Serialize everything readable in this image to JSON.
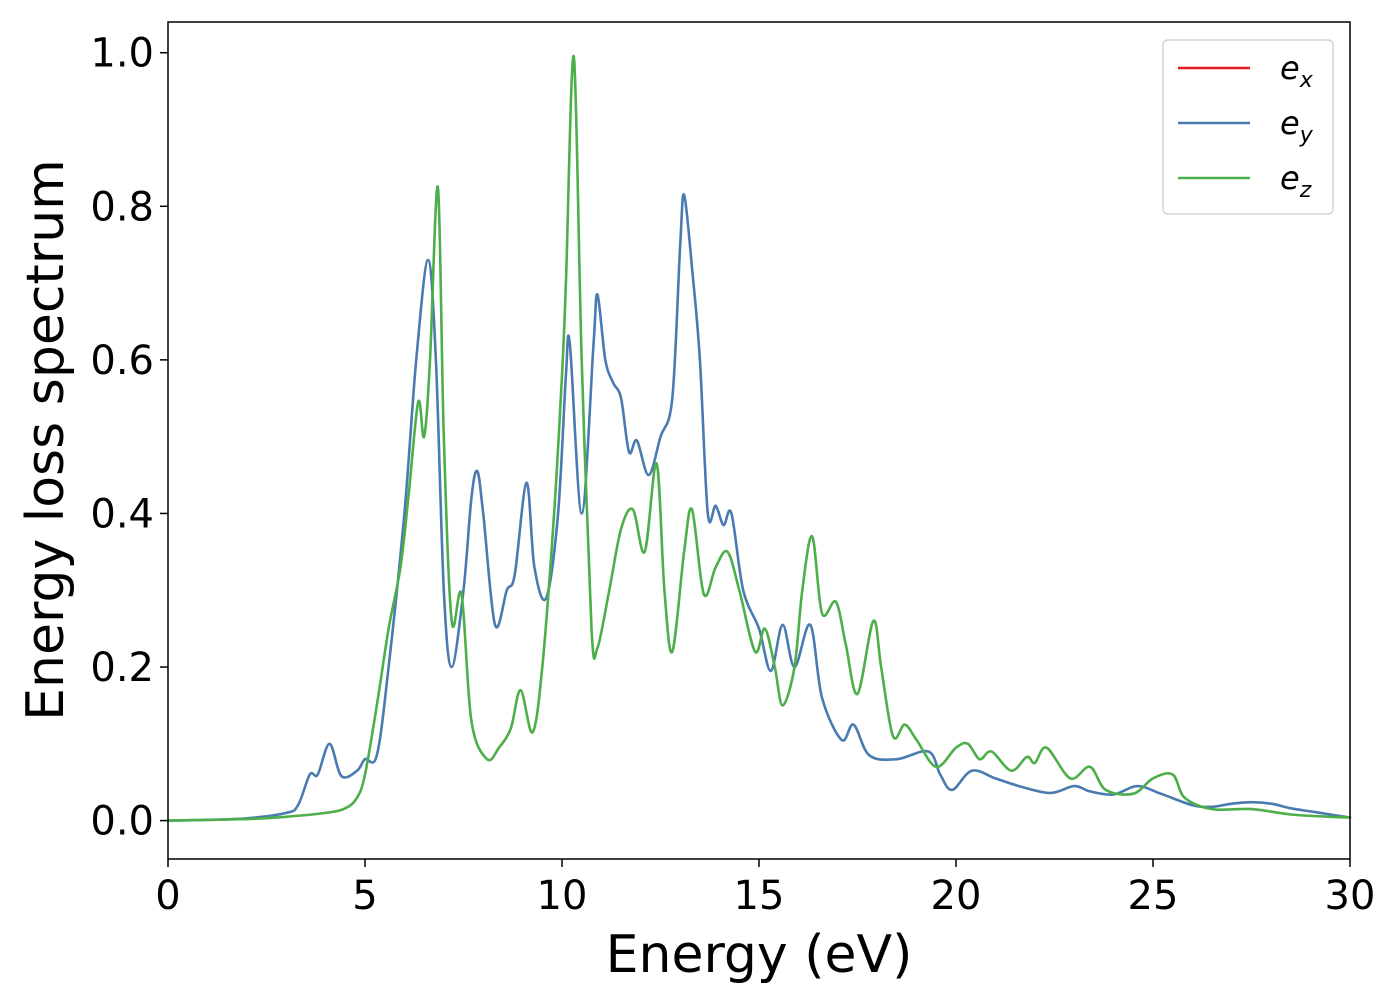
{
  "chart_data": {
    "type": "line",
    "xlabel": "Energy (eV)",
    "ylabel": "Energy loss spectrum",
    "xlim": [
      0,
      30
    ],
    "ylim": [
      -0.05,
      1.04
    ],
    "xticks": [
      0,
      5,
      10,
      15,
      20,
      25,
      30
    ],
    "yticks": [
      0.0,
      0.2,
      0.4,
      0.6,
      0.8,
      1.0
    ],
    "xtick_labels": [
      "0",
      "5",
      "10",
      "15",
      "20",
      "25",
      "30"
    ],
    "ytick_labels": [
      "0.0",
      "0.2",
      "0.4",
      "0.6",
      "0.8",
      "1.0"
    ],
    "grid": false,
    "legend_position": "top-right",
    "series": [
      {
        "name": "e",
        "subscript": "x",
        "color": "#e41a1c",
        "points": []
      },
      {
        "name": "e",
        "subscript": "y",
        "color": "#4a7bb0",
        "points": [
          [
            0,
            0
          ],
          [
            1,
            0.001
          ],
          [
            2,
            0.003
          ],
          [
            3,
            0.01
          ],
          [
            3.3,
            0.02
          ],
          [
            3.6,
            0.06
          ],
          [
            3.8,
            0.06
          ],
          [
            4.1,
            0.1
          ],
          [
            4.4,
            0.058
          ],
          [
            4.8,
            0.065
          ],
          [
            5.0,
            0.08
          ],
          [
            5.3,
            0.085
          ],
          [
            5.6,
            0.2
          ],
          [
            6.0,
            0.4
          ],
          [
            6.3,
            0.6
          ],
          [
            6.6,
            0.73
          ],
          [
            6.8,
            0.6
          ],
          [
            7.0,
            0.3
          ],
          [
            7.2,
            0.2
          ],
          [
            7.5,
            0.3
          ],
          [
            7.7,
            0.42
          ],
          [
            7.85,
            0.455
          ],
          [
            8.0,
            0.4
          ],
          [
            8.3,
            0.255
          ],
          [
            8.6,
            0.3
          ],
          [
            8.8,
            0.32
          ],
          [
            9.1,
            0.44
          ],
          [
            9.3,
            0.33
          ],
          [
            9.6,
            0.29
          ],
          [
            9.9,
            0.4
          ],
          [
            10.1,
            0.58
          ],
          [
            10.2,
            0.62
          ],
          [
            10.5,
            0.4
          ],
          [
            10.8,
            0.62
          ],
          [
            10.9,
            0.685
          ],
          [
            11.1,
            0.6
          ],
          [
            11.3,
            0.57
          ],
          [
            11.5,
            0.55
          ],
          [
            11.7,
            0.48
          ],
          [
            11.9,
            0.495
          ],
          [
            12.2,
            0.45
          ],
          [
            12.5,
            0.5
          ],
          [
            12.8,
            0.55
          ],
          [
            13.0,
            0.75
          ],
          [
            13.1,
            0.815
          ],
          [
            13.3,
            0.72
          ],
          [
            13.5,
            0.6
          ],
          [
            13.7,
            0.4
          ],
          [
            13.9,
            0.41
          ],
          [
            14.1,
            0.385
          ],
          [
            14.3,
            0.4
          ],
          [
            14.6,
            0.3
          ],
          [
            15.0,
            0.25
          ],
          [
            15.3,
            0.195
          ],
          [
            15.6,
            0.255
          ],
          [
            15.9,
            0.2
          ],
          [
            16.3,
            0.255
          ],
          [
            16.6,
            0.16
          ],
          [
            17.1,
            0.105
          ],
          [
            17.4,
            0.125
          ],
          [
            17.8,
            0.085
          ],
          [
            18.5,
            0.08
          ],
          [
            19.3,
            0.09
          ],
          [
            19.6,
            0.06
          ],
          [
            19.9,
            0.04
          ],
          [
            20.4,
            0.065
          ],
          [
            21.0,
            0.055
          ],
          [
            21.6,
            0.045
          ],
          [
            22.4,
            0.036
          ],
          [
            23.0,
            0.045
          ],
          [
            23.4,
            0.038
          ],
          [
            24.0,
            0.034
          ],
          [
            24.6,
            0.045
          ],
          [
            25.2,
            0.035
          ],
          [
            26.0,
            0.02
          ],
          [
            26.5,
            0.018
          ],
          [
            27.0,
            0.022
          ],
          [
            27.5,
            0.024
          ],
          [
            28.0,
            0.022
          ],
          [
            28.5,
            0.016
          ],
          [
            29.0,
            0.012
          ],
          [
            29.5,
            0.008
          ],
          [
            30,
            0.004
          ]
        ]
      },
      {
        "name": "e",
        "subscript": "z",
        "color": "#4daf4a",
        "points": [
          [
            0,
            0
          ],
          [
            2,
            0.002
          ],
          [
            3,
            0.005
          ],
          [
            4,
            0.01
          ],
          [
            4.5,
            0.016
          ],
          [
            4.8,
            0.03
          ],
          [
            5.0,
            0.06
          ],
          [
            5.3,
            0.15
          ],
          [
            5.6,
            0.25
          ],
          [
            5.9,
            0.33
          ],
          [
            6.1,
            0.42
          ],
          [
            6.35,
            0.545
          ],
          [
            6.5,
            0.5
          ],
          [
            6.65,
            0.6
          ],
          [
            6.85,
            0.825
          ],
          [
            7.0,
            0.5
          ],
          [
            7.2,
            0.26
          ],
          [
            7.45,
            0.295
          ],
          [
            7.7,
            0.13
          ],
          [
            8.1,
            0.08
          ],
          [
            8.4,
            0.095
          ],
          [
            8.7,
            0.12
          ],
          [
            8.95,
            0.17
          ],
          [
            9.25,
            0.115
          ],
          [
            9.5,
            0.2
          ],
          [
            9.8,
            0.4
          ],
          [
            10.0,
            0.58
          ],
          [
            10.1,
            0.7
          ],
          [
            10.3,
            0.995
          ],
          [
            10.5,
            0.6
          ],
          [
            10.75,
            0.25
          ],
          [
            10.9,
            0.225
          ],
          [
            11.2,
            0.3
          ],
          [
            11.5,
            0.38
          ],
          [
            11.8,
            0.405
          ],
          [
            12.1,
            0.35
          ],
          [
            12.4,
            0.465
          ],
          [
            12.6,
            0.3
          ],
          [
            12.8,
            0.22
          ],
          [
            13.1,
            0.35
          ],
          [
            13.3,
            0.405
          ],
          [
            13.6,
            0.295
          ],
          [
            13.9,
            0.33
          ],
          [
            14.2,
            0.35
          ],
          [
            14.5,
            0.3
          ],
          [
            14.9,
            0.22
          ],
          [
            15.15,
            0.25
          ],
          [
            15.4,
            0.2
          ],
          [
            15.6,
            0.15
          ],
          [
            15.9,
            0.2
          ],
          [
            16.1,
            0.3
          ],
          [
            16.35,
            0.37
          ],
          [
            16.6,
            0.27
          ],
          [
            16.95,
            0.285
          ],
          [
            17.2,
            0.23
          ],
          [
            17.5,
            0.165
          ],
          [
            17.9,
            0.26
          ],
          [
            18.1,
            0.2
          ],
          [
            18.4,
            0.11
          ],
          [
            18.7,
            0.125
          ],
          [
            19.0,
            0.105
          ],
          [
            19.5,
            0.07
          ],
          [
            20.0,
            0.095
          ],
          [
            20.3,
            0.1
          ],
          [
            20.6,
            0.08
          ],
          [
            20.9,
            0.09
          ],
          [
            21.4,
            0.065
          ],
          [
            21.8,
            0.083
          ],
          [
            22.0,
            0.075
          ],
          [
            22.3,
            0.095
          ],
          [
            22.9,
            0.055
          ],
          [
            23.4,
            0.07
          ],
          [
            23.8,
            0.04
          ],
          [
            24.5,
            0.035
          ],
          [
            25.0,
            0.055
          ],
          [
            25.5,
            0.06
          ],
          [
            25.8,
            0.03
          ],
          [
            26.5,
            0.015
          ],
          [
            27.5,
            0.015
          ],
          [
            28.5,
            0.008
          ],
          [
            29.5,
            0.005
          ],
          [
            30,
            0.004
          ]
        ]
      }
    ]
  }
}
